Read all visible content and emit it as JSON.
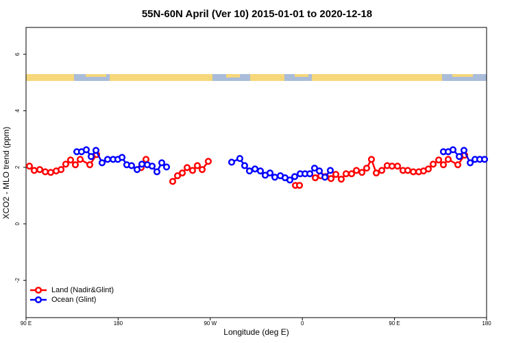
{
  "chart_data": {
    "type": "line",
    "title": "55N-60N April (Ver 10)   2015-01-01 to 2020-12-18",
    "x_label": "Longitude (deg E)",
    "y_label": "XCO2 - MLO trend (ppm)",
    "xlim": [
      90,
      540
    ],
    "xticks": [
      {
        "value": 90,
        "label": "90 E"
      },
      180,
      {
        "value": 270,
        "label": "90 W"
      },
      {
        "value": 360,
        "label": "0"
      },
      {
        "value": 450,
        "label": "90 E"
      },
      {
        "value": 540,
        "label": "180"
      }
    ],
    "ylim": [
      -3.32,
      6.95
    ],
    "yticks": [
      -2,
      0,
      2,
      4,
      6
    ],
    "legend": "bottom-left",
    "series": [
      {
        "name": "Land (Nadir&Glint)",
        "color": "#ff0000",
        "x": [
          93.3,
          98,
          103.4,
          108.8,
          114.1,
          119.5,
          124.2,
          128.8,
          133.5,
          138.2,
          142.9,
          152.3,
          159,
          null,
          202.5,
          207.2,
          null,
          233.3,
          238,
          242.7,
          247.4,
          252.7,
          257.4,
          262.1,
          268.1,
          null,
          353.2,
          357.2,
          null,
          372.6,
          378,
          382.7,
          388,
          392.7,
          398,
          402.7,
          408.1,
          412.8,
          418.2,
          422.8,
          427.5,
          432.2,
          437.6,
          442.9,
          447.6,
          453,
          458.3,
          463,
          468.4,
          473.7,
          478.4,
          483.1,
          487.8,
          493.2,
          497.8,
          502.5,
          511.9,
          518.6
        ],
        "values": [
          2.04,
          1.89,
          1.92,
          1.84,
          1.82,
          1.87,
          1.92,
          2.11,
          2.26,
          2.09,
          2.28,
          2.09,
          2.45,
          null,
          1.99,
          2.28,
          null,
          1.5,
          1.7,
          1.8,
          1.99,
          1.89,
          2.06,
          1.92,
          2.21,
          null,
          1.36,
          1.36,
          null,
          1.63,
          1.7,
          1.67,
          1.6,
          1.75,
          1.58,
          1.77,
          1.77,
          1.89,
          1.82,
          1.97,
          2.28,
          1.8,
          1.89,
          2.06,
          2.04,
          2.04,
          1.89,
          1.89,
          1.84,
          1.84,
          1.87,
          1.94,
          2.11,
          2.26,
          2.09,
          2.28,
          2.09,
          2.43
        ]
      },
      {
        "name": "Ocean (Glint)",
        "color": "#0000ff",
        "x": [
          139.6,
          144.2,
          148.9,
          153.6,
          158.3,
          164.3,
          169.7,
          175.1,
          179.7,
          183.8,
          188.4,
          193.1,
          198.5,
          203.2,
          208.5,
          213.2,
          217.9,
          222.6,
          227.3,
          null,
          290.9,
          298.9,
          303.6,
          308.3,
          313.7,
          319,
          323.7,
          328.4,
          333.1,
          338.5,
          343.1,
          347.8,
          352.5,
          357.9,
          362.6,
          367.3,
          371.9,
          376.6,
          382,
          387.3,
          null,
          497.8,
          502.5,
          507.2,
          513.3,
          517.9,
          524,
          528.7,
          533.3,
          538
        ],
        "values": [
          2.55,
          2.55,
          2.62,
          2.38,
          2.6,
          2.16,
          2.28,
          2.28,
          2.28,
          2.35,
          2.09,
          2.06,
          1.92,
          2.11,
          2.09,
          2.04,
          1.84,
          2.16,
          2.01,
          null,
          2.18,
          2.31,
          2.06,
          1.87,
          1.94,
          1.87,
          1.72,
          1.8,
          1.65,
          1.7,
          1.63,
          1.55,
          1.67,
          1.77,
          1.77,
          1.77,
          1.97,
          1.87,
          1.65,
          1.89,
          null,
          2.55,
          2.55,
          2.62,
          2.38,
          2.6,
          2.16,
          2.28,
          2.28,
          2.28
        ]
      }
    ]
  }
}
